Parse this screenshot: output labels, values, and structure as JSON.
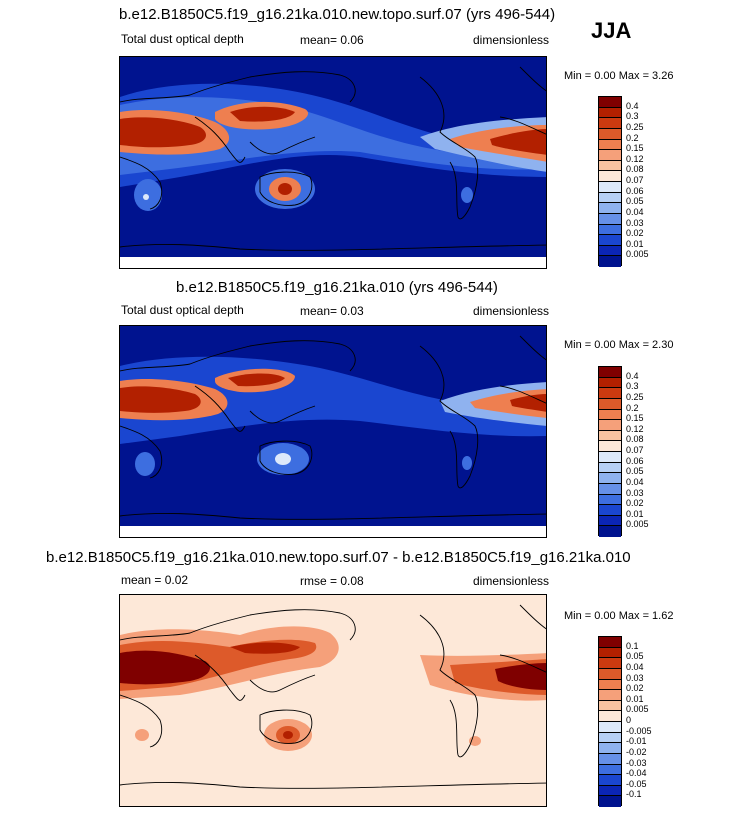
{
  "season": "JJA",
  "panels": [
    {
      "id": "panel1",
      "title": "b.e12.B1850C5.f19_g16.21ka.010.new.topo.surf.07 (yrs 496-544)",
      "left_label": "Total dust optical depth",
      "center_label": "mean=  0.06",
      "right_label": "dimensionless",
      "minmax": "Min =   0.00 Max =   3.26",
      "colorbar": {
        "labels": [
          "0.4",
          "0.3",
          "0.25",
          "0.2",
          "0.15",
          "0.12",
          "0.08",
          "0.07",
          "0.06",
          "0.05",
          "0.04",
          "0.03",
          "0.02",
          "0.01",
          "0.005"
        ],
        "colors": [
          "#7f0000",
          "#b22000",
          "#cc3a10",
          "#dd5a2a",
          "#ee7f50",
          "#f5a07a",
          "#f8c3a0",
          "#fde8d8",
          "#dde9fa",
          "#b7d0f5",
          "#8fb2ef",
          "#6690e8",
          "#3d6ee0",
          "#1a46d0",
          "#0b25b5",
          "#00138f"
        ]
      }
    },
    {
      "id": "panel2",
      "title": "b.e12.B1850C5.f19_g16.21ka.010 (yrs 496-544)",
      "left_label": "Total dust optical depth",
      "center_label": "mean=  0.03",
      "right_label": "dimensionless",
      "minmax": "Min =   0.00 Max =   2.30",
      "colorbar": {
        "labels": [
          "0.4",
          "0.3",
          "0.25",
          "0.2",
          "0.15",
          "0.12",
          "0.08",
          "0.07",
          "0.06",
          "0.05",
          "0.04",
          "0.03",
          "0.02",
          "0.01",
          "0.005"
        ],
        "colors": [
          "#7f0000",
          "#b22000",
          "#cc3a10",
          "#dd5a2a",
          "#ee7f50",
          "#f5a07a",
          "#f8c3a0",
          "#fde8d8",
          "#dde9fa",
          "#b7d0f5",
          "#8fb2ef",
          "#6690e8",
          "#3d6ee0",
          "#1a46d0",
          "#0b25b5",
          "#00138f"
        ]
      }
    },
    {
      "id": "panel3",
      "title": "b.e12.B1850C5.f19_g16.21ka.010.new.topo.surf.07 - b.e12.B1850C5.f19_g16.21ka.010",
      "left_label": "mean =  0.02",
      "center_label": "rmse =  0.08",
      "right_label": "dimensionless",
      "minmax": "Min =   0.00 Max =   1.62",
      "colorbar": {
        "labels": [
          "0.1",
          "0.05",
          "0.04",
          "0.03",
          "0.02",
          "0.01",
          "0.005",
          "0",
          "-0.005",
          "-0.01",
          "-0.02",
          "-0.03",
          "-0.04",
          "-0.05",
          "-0.1"
        ],
        "colors": [
          "#7f0000",
          "#b22000",
          "#cc3a10",
          "#dd5a2a",
          "#ee7f50",
          "#f5a07a",
          "#f8c3a0",
          "#fde8d8",
          "#dde9fa",
          "#b7d0f5",
          "#8fb2ef",
          "#6690e8",
          "#3d6ee0",
          "#1a46d0",
          "#0b25b5",
          "#00138f"
        ]
      }
    }
  ]
}
